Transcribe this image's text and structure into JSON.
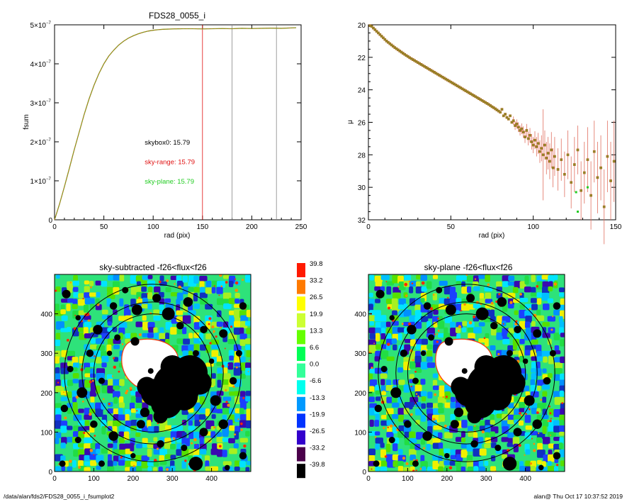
{
  "footer": {
    "left": "/data/alan/fds2/FDS28_0055_i_fsumplot2",
    "right": "alan@  Thu Oct 17 10:37:52 2019"
  },
  "colors": {
    "curve_orange": "#c0732a",
    "curve_green": "#7a9a1a",
    "sky_range": "#e01010",
    "sky_plane": "#22cc22",
    "vline_gray": "#888888"
  },
  "chart_data": [
    {
      "type": "line",
      "title": "FDS28_0055_i",
      "xlabel": "rad (pix)",
      "ylabel": "fsum",
      "xlim": [
        0,
        250
      ],
      "ylim": [
        0,
        5e-07
      ],
      "x_ticks": [
        0,
        50,
        100,
        150,
        200,
        250
      ],
      "y_ticks": [
        {
          "value": 0,
          "mant": "0",
          "exp": ""
        },
        {
          "value": 1e-07,
          "mant": "1×10",
          "exp": "−7"
        },
        {
          "value": 2e-07,
          "mant": "2×10",
          "exp": "−7"
        },
        {
          "value": 3e-07,
          "mant": "3×10",
          "exp": "−7"
        },
        {
          "value": 4e-07,
          "mant": "4×10",
          "exp": "−7"
        },
        {
          "value": 5e-07,
          "mant": "5×10",
          "exp": "−7"
        }
      ],
      "series": [
        {
          "x": [
            0,
            5,
            10,
            15,
            20,
            25,
            30,
            35,
            40,
            45,
            50,
            55,
            60,
            65,
            70,
            75,
            80,
            85,
            90,
            95,
            100,
            105,
            110,
            115,
            120,
            130,
            140,
            150,
            160,
            170,
            180,
            190,
            200,
            210,
            220,
            230,
            240,
            245
          ],
          "y": [
            0,
            4e-08,
            8.5e-08,
            1.32e-07,
            1.8e-07,
            2.25e-07,
            2.7e-07,
            3.1e-07,
            3.45e-07,
            3.75e-07,
            4e-07,
            4.2e-07,
            4.35e-07,
            4.48e-07,
            4.58e-07,
            4.66e-07,
            4.72e-07,
            4.77e-07,
            4.81e-07,
            4.84e-07,
            4.86e-07,
            4.875e-07,
            4.885e-07,
            4.89e-07,
            4.895e-07,
            4.9e-07,
            4.9e-07,
            4.895e-07,
            4.9e-07,
            4.905e-07,
            4.9e-07,
            4.91e-07,
            4.905e-07,
            4.91e-07,
            4.915e-07,
            4.91e-07,
            4.92e-07,
            4.925e-07
          ]
        }
      ],
      "vlines": [
        {
          "x": 150,
          "color": "#e01010"
        },
        {
          "x": 180,
          "color": "#888888"
        },
        {
          "x": 225,
          "color": "#888888"
        }
      ],
      "annotations": [
        {
          "text": "skybox0: 15.79",
          "x": 90,
          "y": 2e-07,
          "color": "#000000"
        },
        {
          "text": "sky-range: 15.79",
          "x": 90,
          "y": 1.5e-07,
          "color": "#e01010"
        },
        {
          "text": "sky-plane: 15.79",
          "x": 90,
          "y": 1e-07,
          "color": "#22cc22"
        }
      ]
    },
    {
      "type": "scatter",
      "title": "",
      "xlabel": "rad (pix)",
      "ylabel": "μ",
      "xlim": [
        0,
        150
      ],
      "ylim": [
        32,
        20
      ],
      "y_reversed": true,
      "x_ticks": [
        0,
        50,
        100,
        150
      ],
      "y_ticks": [
        20,
        22,
        24,
        26,
        28,
        30,
        32
      ],
      "points": [
        [
          1,
          20.05,
          0.02
        ],
        [
          2,
          20.1,
          0.02
        ],
        [
          3,
          20.2,
          0.02
        ],
        [
          4,
          20.3,
          0.02
        ],
        [
          5,
          20.4,
          0.02
        ],
        [
          6,
          20.5,
          0.02
        ],
        [
          7,
          20.6,
          0.02
        ],
        [
          8,
          20.7,
          0.02
        ],
        [
          9,
          20.8,
          0.02
        ],
        [
          10,
          20.9,
          0.02
        ],
        [
          11,
          21.0,
          0.03
        ],
        [
          12,
          21.08,
          0.03
        ],
        [
          13,
          21.16,
          0.03
        ],
        [
          14,
          21.24,
          0.03
        ],
        [
          15,
          21.32,
          0.03
        ],
        [
          16,
          21.4,
          0.03
        ],
        [
          17,
          21.47,
          0.03
        ],
        [
          18,
          21.54,
          0.03
        ],
        [
          19,
          21.61,
          0.03
        ],
        [
          20,
          21.68,
          0.03
        ],
        [
          21,
          21.75,
          0.03
        ],
        [
          22,
          21.82,
          0.04
        ],
        [
          23,
          21.89,
          0.04
        ],
        [
          24,
          21.95,
          0.04
        ],
        [
          25,
          22.02,
          0.04
        ],
        [
          26,
          22.08,
          0.04
        ],
        [
          27,
          22.14,
          0.04
        ],
        [
          28,
          22.2,
          0.04
        ],
        [
          29,
          22.26,
          0.04
        ],
        [
          30,
          22.32,
          0.05
        ],
        [
          31,
          22.38,
          0.05
        ],
        [
          32,
          22.44,
          0.05
        ],
        [
          33,
          22.5,
          0.05
        ],
        [
          34,
          22.56,
          0.05
        ],
        [
          35,
          22.62,
          0.05
        ],
        [
          36,
          22.68,
          0.05
        ],
        [
          37,
          22.74,
          0.06
        ],
        [
          38,
          22.8,
          0.06
        ],
        [
          39,
          22.86,
          0.06
        ],
        [
          40,
          22.92,
          0.06
        ],
        [
          41,
          22.98,
          0.06
        ],
        [
          42,
          23.04,
          0.06
        ],
        [
          43,
          23.1,
          0.07
        ],
        [
          44,
          23.16,
          0.07
        ],
        [
          45,
          23.22,
          0.07
        ],
        [
          46,
          23.28,
          0.07
        ],
        [
          47,
          23.34,
          0.07
        ],
        [
          48,
          23.4,
          0.08
        ],
        [
          49,
          23.46,
          0.08
        ],
        [
          50,
          23.52,
          0.08
        ],
        [
          51,
          23.58,
          0.08
        ],
        [
          52,
          23.64,
          0.08
        ],
        [
          53,
          23.7,
          0.09
        ],
        [
          54,
          23.76,
          0.09
        ],
        [
          55,
          23.82,
          0.09
        ],
        [
          56,
          23.88,
          0.09
        ],
        [
          57,
          23.94,
          0.1
        ],
        [
          58,
          24.0,
          0.1
        ],
        [
          59,
          24.06,
          0.1
        ],
        [
          60,
          24.12,
          0.1
        ],
        [
          61,
          24.18,
          0.11
        ],
        [
          62,
          24.24,
          0.11
        ],
        [
          63,
          24.3,
          0.11
        ],
        [
          64,
          24.36,
          0.12
        ],
        [
          65,
          24.42,
          0.12
        ],
        [
          66,
          24.48,
          0.12
        ],
        [
          67,
          24.54,
          0.13
        ],
        [
          68,
          24.6,
          0.13
        ],
        [
          69,
          24.66,
          0.13
        ],
        [
          70,
          24.72,
          0.14
        ],
        [
          71,
          24.78,
          0.14
        ],
        [
          72,
          24.84,
          0.15
        ],
        [
          73,
          24.9,
          0.15
        ],
        [
          74,
          24.97,
          0.16
        ],
        [
          75,
          25.04,
          0.16
        ],
        [
          76,
          25.1,
          0.17
        ],
        [
          77,
          25.17,
          0.17
        ],
        [
          78,
          25.24,
          0.18
        ],
        [
          79,
          25.31,
          0.18
        ],
        [
          80,
          25.38,
          0.19
        ],
        [
          81,
          25.2,
          0.2
        ],
        [
          82,
          25.6,
          0.2
        ],
        [
          83,
          25.5,
          0.21
        ],
        [
          84,
          25.7,
          0.22
        ],
        [
          85,
          25.8,
          0.23
        ],
        [
          86,
          25.6,
          0.24
        ],
        [
          87,
          26.0,
          0.25
        ],
        [
          88,
          25.9,
          0.26
        ],
        [
          89,
          26.2,
          0.27
        ],
        [
          90,
          26.1,
          0.28
        ],
        [
          91,
          26.3,
          0.3
        ],
        [
          92,
          26.5,
          0.31
        ],
        [
          93,
          26.4,
          0.33
        ],
        [
          94,
          26.6,
          0.35
        ],
        [
          95,
          26.9,
          0.37
        ],
        [
          96,
          26.5,
          0.4
        ],
        [
          97,
          27.0,
          0.42
        ],
        [
          98,
          26.8,
          0.45
        ],
        [
          99,
          27.2,
          0.48
        ],
        [
          100,
          27.4,
          0.5
        ],
        [
          101,
          27.1,
          0.55
        ],
        [
          102,
          27.5,
          0.6
        ],
        [
          103,
          27.3,
          0.65
        ],
        [
          104,
          27.8,
          0.7
        ],
        [
          105,
          27.6,
          0.8
        ],
        [
          106,
          28.0,
          2.8
        ],
        [
          107,
          27.4,
          0.9
        ],
        [
          108,
          28.2,
          1.0
        ],
        [
          109,
          27.9,
          1.0
        ],
        [
          110,
          28.4,
          1.1
        ],
        [
          111,
          27.7,
          1.1
        ],
        [
          112,
          28.8,
          1.2
        ],
        [
          113,
          28.1,
          1.2
        ],
        [
          115,
          28.9,
          1.3
        ],
        [
          117,
          28.3,
          1.3
        ],
        [
          119,
          29.2,
          1.4
        ],
        [
          121,
          28.0,
          1.5
        ],
        [
          123,
          29.7,
          1.6
        ],
        [
          125,
          28.6,
          1.7
        ],
        [
          127,
          27.7,
          1.5
        ],
        [
          129,
          30.2,
          1.8
        ],
        [
          131,
          29.1,
          1.9
        ],
        [
          133,
          28.3,
          2.0
        ],
        [
          135,
          30.5,
          2.1
        ],
        [
          137,
          27.8,
          1.9
        ],
        [
          139,
          29.4,
          2.2
        ],
        [
          141,
          28.8,
          2.0
        ],
        [
          143,
          31.2,
          2.3
        ],
        [
          145,
          28.1,
          2.2
        ],
        [
          147,
          29.6,
          2.4
        ],
        [
          149,
          28.4,
          2.5
        ]
      ],
      "green_outliers": [
        [
          127,
          31.5
        ],
        [
          126,
          30.3
        ],
        [
          133,
          30.0
        ]
      ]
    },
    {
      "type": "heatmap",
      "title": "sky-subtracted -f26<flux<f26",
      "xlim": [
        0,
        500
      ],
      "ylim": [
        0,
        500
      ],
      "x_ticks": [
        0,
        100,
        200,
        300,
        400
      ],
      "y_ticks": [
        0,
        100,
        200,
        300,
        400
      ],
      "center": [
        250,
        250
      ],
      "circle_radii": [
        150,
        180,
        225
      ],
      "masked_regions": "white galaxy core near center, large black masked source lower-right of center, scattered black masked stars"
    },
    {
      "type": "heatmap",
      "title": "sky-plane -f26<flux<f26",
      "xlim": [
        0,
        500
      ],
      "ylim": [
        0,
        500
      ],
      "x_ticks": [
        0,
        100,
        200,
        300,
        400
      ],
      "y_ticks": [
        0,
        100,
        200,
        300,
        400
      ],
      "center": [
        250,
        250
      ],
      "circle_radii": [
        150,
        180,
        225
      ],
      "masked_regions": "white galaxy core near center, large black masked source lower-right of center, scattered black masked stars"
    },
    {
      "type": "table",
      "title": "",
      "colorbar": {
        "labels": [
          "39.8",
          "33.2",
          "26.5",
          "19.9",
          "13.3",
          "6.6",
          "0.0",
          "-6.6",
          "-13.3",
          "-19.9",
          "-26.5",
          "-33.2",
          "-39.8"
        ],
        "colors": [
          "#ff1a00",
          "#ff7a00",
          "#ffff00",
          "#ccff33",
          "#66ff00",
          "#00ff55",
          "#33ff99",
          "#00ffee",
          "#0099ff",
          "#0033ff",
          "#3300cc",
          "#4b004b",
          "#000000"
        ]
      }
    }
  ]
}
